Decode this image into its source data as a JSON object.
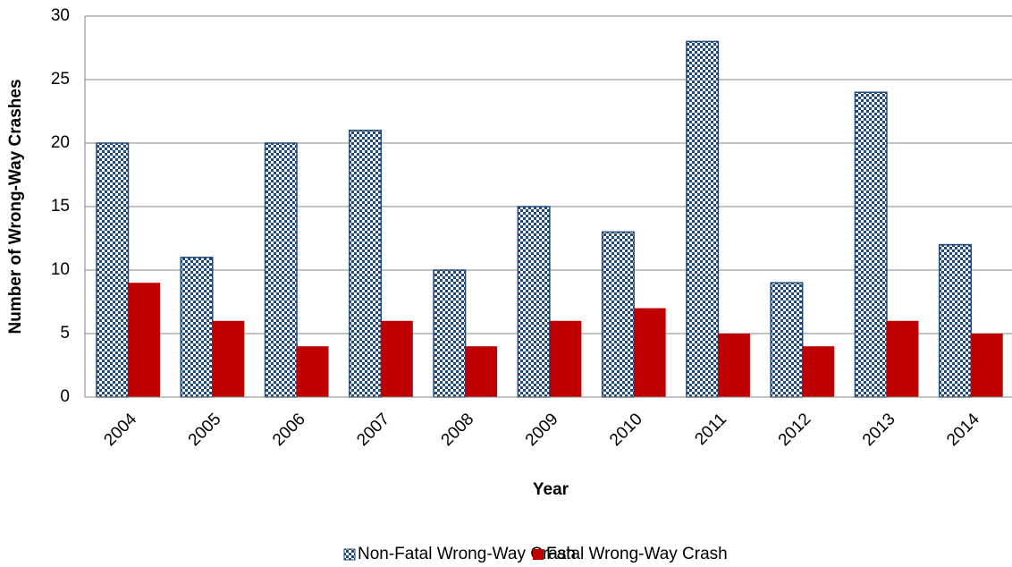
{
  "chart_data": {
    "type": "bar",
    "x_label": "Year",
    "y_label": "Number of Wrong-Way Crashes",
    "categories": [
      "2004",
      "2005",
      "2006",
      "2007",
      "2008",
      "2009",
      "2010",
      "2011",
      "2012",
      "2013",
      "2014"
    ],
    "series": [
      {
        "name": "Non-Fatal Wrong-Way Crash",
        "color": "#1f497d",
        "pattern": "checker",
        "values": [
          20,
          11,
          20,
          21,
          10,
          15,
          13,
          28,
          9,
          24,
          12
        ]
      },
      {
        "name": "Fatal Wrong-Way Crash",
        "color": "#c00000",
        "values": [
          9,
          6,
          4,
          6,
          4,
          6,
          7,
          5,
          4,
          6,
          5
        ]
      }
    ],
    "ylim": [
      0,
      30
    ],
    "yticks": [
      0,
      5,
      10,
      15,
      20,
      25,
      30
    ],
    "grid": true,
    "legend": "bottom"
  }
}
